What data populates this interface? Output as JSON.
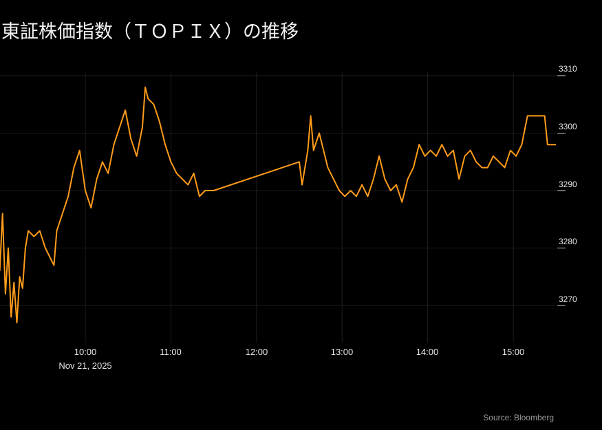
{
  "title": "東証株価指数（ＴＯＰＩＸ）の推移",
  "source": "Source: Bloomberg",
  "colors": {
    "background": "#000000",
    "line": "#ff9c1a",
    "grid": "#1e1e1e",
    "text": "#e6e6e6",
    "source_text": "#9a9a9a"
  },
  "y_axis": {
    "ticks": [
      "3310",
      "3300",
      "3290",
      "3280",
      "3270"
    ]
  },
  "x_axis": {
    "ticks": [
      "10:00",
      "11:00",
      "12:00",
      "13:00",
      "14:00",
      "15:00"
    ],
    "date_label": "Nov 21, 2025"
  },
  "chart_data": {
    "type": "line",
    "title": "東証株価指数（ＴＯＰＩＸ）の推移",
    "xlabel": "",
    "ylabel": "",
    "date": "Nov 21, 2025",
    "x_ticks": [
      "10:00",
      "11:00",
      "12:00",
      "13:00",
      "14:00",
      "15:00"
    ],
    "y_ticks": [
      3270,
      3280,
      3290,
      3300,
      3310
    ],
    "ylim": [
      3265,
      3311
    ],
    "grid": true,
    "legend": "none",
    "source": "Source: Bloomberg",
    "series": [
      {
        "name": "TOPIX",
        "color": "#ff9c1a",
        "x": [
          "09:00",
          "09:02",
          "09:04",
          "09:06",
          "09:08",
          "09:10",
          "09:12",
          "09:14",
          "09:16",
          "09:18",
          "09:20",
          "09:24",
          "09:28",
          "09:32",
          "09:36",
          "09:38",
          "09:40",
          "09:44",
          "09:48",
          "09:52",
          "09:56",
          "10:00",
          "10:04",
          "10:08",
          "10:12",
          "10:16",
          "10:20",
          "10:24",
          "10:28",
          "10:32",
          "10:36",
          "10:40",
          "10:42",
          "10:44",
          "10:48",
          "10:52",
          "10:56",
          "11:00",
          "11:04",
          "11:08",
          "11:12",
          "11:16",
          "11:20",
          "11:24",
          "11:26",
          "11:28",
          "11:30",
          "12:30",
          "12:32",
          "12:36",
          "12:38",
          "12:40",
          "12:44",
          "12:46",
          "12:50",
          "12:54",
          "12:58",
          "13:02",
          "13:06",
          "13:10",
          "13:14",
          "13:18",
          "13:22",
          "13:26",
          "13:30",
          "13:34",
          "13:38",
          "13:42",
          "13:46",
          "13:50",
          "13:54",
          "13:58",
          "14:02",
          "14:06",
          "14:10",
          "14:14",
          "14:18",
          "14:22",
          "14:26",
          "14:30",
          "14:34",
          "14:38",
          "14:42",
          "14:46",
          "14:50",
          "14:54",
          "14:58",
          "15:02",
          "15:06",
          "15:10",
          "15:14",
          "15:18",
          "15:20",
          "15:22",
          "15:24",
          "15:26",
          "15:30"
        ],
        "values": [
          3276,
          3286,
          3272,
          3280,
          3268,
          3274,
          3267,
          3275,
          3273,
          3280,
          3283,
          3282,
          3283,
          3280,
          3278,
          3277,
          3283,
          3286,
          3289,
          3294,
          3297,
          3290,
          3287,
          3292,
          3295,
          3293,
          3298,
          3301,
          3304,
          3299,
          3296,
          3301,
          3308,
          3306,
          3305,
          3302,
          3298,
          3295,
          3293,
          3292,
          3291,
          3293,
          3289,
          3290,
          3290,
          3290,
          3290,
          3295,
          3291,
          3297,
          3303,
          3297,
          3300,
          3298,
          3294,
          3292,
          3290,
          3289,
          3290,
          3289,
          3291,
          3289,
          3292,
          3296,
          3292,
          3290,
          3291,
          3288,
          3292,
          3294,
          3298,
          3296,
          3297,
          3296,
          3298,
          3296,
          3297,
          3292,
          3296,
          3297,
          3295,
          3294,
          3294,
          3296,
          3295,
          3294,
          3297,
          3296,
          3298,
          3303,
          3303,
          3303,
          3303,
          3303,
          3298,
          3298,
          3298
        ]
      }
    ]
  }
}
